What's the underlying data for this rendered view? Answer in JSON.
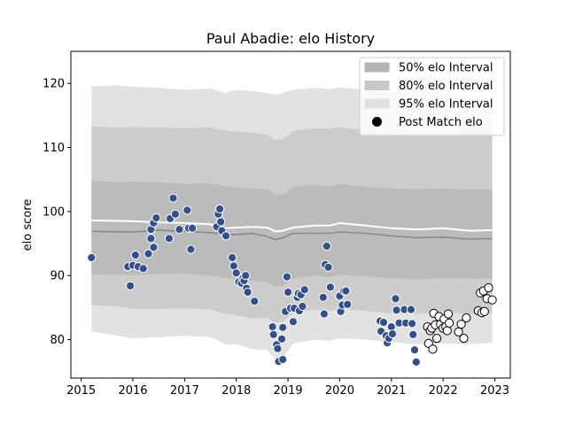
{
  "chart_data": {
    "type": "scatter",
    "title": "Paul Abadie: elo History",
    "xlabel": "",
    "ylabel": "elo score",
    "xlim": [
      2014.8,
      2023.3
    ],
    "ylim": [
      74,
      125
    ],
    "xticks": [
      2015,
      2016,
      2017,
      2018,
      2019,
      2020,
      2021,
      2022,
      2023
    ],
    "yticks": [
      80,
      90,
      100,
      110,
      120
    ],
    "grid": false,
    "legend_position": "top-right",
    "legend": [
      {
        "label": "50% elo Interval",
        "kind": "band",
        "color": "#b4b4b4"
      },
      {
        "label": "80% elo Interval",
        "kind": "band",
        "color": "#c8c8c8"
      },
      {
        "label": "95% elo Interval",
        "kind": "band",
        "color": "#e0e0e0"
      },
      {
        "label": "Post Match elo",
        "kind": "marker",
        "color": "#000000"
      }
    ],
    "colors": {
      "band95": "#e2e2e2",
      "band80": "#cccccc",
      "band50": "#bbbbbb",
      "median_line": "#888888",
      "mean_line": "#ffffff",
      "historic_points": "#34508a",
      "recent_points": "#ffffff"
    },
    "bands": {
      "x": [
        2015.2,
        2015.7,
        2016.0,
        2016.5,
        2017.0,
        2017.5,
        2017.8,
        2018.0,
        2018.3,
        2018.6,
        2018.75,
        2018.9,
        2019.1,
        2019.5,
        2019.8,
        2020.0,
        2020.5,
        2021.0,
        2021.5,
        2022.0,
        2022.5,
        2022.95
      ],
      "p95_upper": [
        119.5,
        119.7,
        119.5,
        119.3,
        119.0,
        119.2,
        118.5,
        119.0,
        118.8,
        118.5,
        118.2,
        118.5,
        119.0,
        119.3,
        119.1,
        119.4,
        119.0,
        118.7,
        118.5,
        118.5,
        118.0,
        117.7
      ],
      "p95_lower": [
        81.3,
        80.6,
        80.2,
        80.4,
        80.6,
        80.4,
        79.2,
        79.3,
        78.5,
        78.4,
        77.0,
        77.2,
        79.4,
        80.0,
        79.8,
        80.2,
        80.0,
        79.6,
        79.3,
        79.4,
        79.3,
        79.5
      ],
      "p80_upper": [
        113.3,
        113.1,
        113.2,
        113.1,
        113.0,
        113.1,
        112.6,
        112.5,
        112.3,
        112.0,
        111.2,
        111.3,
        112.6,
        113.0,
        112.9,
        113.2,
        112.6,
        112.2,
        112.3,
        112.3,
        112.5,
        112.5
      ],
      "p80_lower": [
        85.4,
        85.2,
        84.8,
        84.8,
        84.9,
        84.7,
        84.0,
        83.8,
        83.3,
        83.4,
        82.6,
        82.8,
        84.1,
        84.7,
        84.4,
        84.8,
        84.5,
        84.1,
        84.0,
        84.3,
        84.0,
        84.0
      ],
      "p50_upper": [
        104.8,
        104.6,
        104.7,
        104.5,
        104.3,
        104.4,
        103.9,
        103.8,
        103.6,
        103.5,
        102.7,
        102.6,
        103.8,
        104.2,
        103.9,
        104.3,
        103.9,
        103.6,
        103.5,
        103.6,
        103.4,
        103.4
      ],
      "p50_lower": [
        90.2,
        90.1,
        90.1,
        90.2,
        90.3,
        90.0,
        89.6,
        89.4,
        89.2,
        89.0,
        88.2,
        88.4,
        89.6,
        90.0,
        89.8,
        90.1,
        89.9,
        89.6,
        89.4,
        89.6,
        89.5,
        89.5
      ]
    },
    "median_line": {
      "x": [
        2015.2,
        2016.0,
        2016.5,
        2017.0,
        2017.5,
        2017.8,
        2018.0,
        2018.3,
        2018.6,
        2018.75,
        2018.9,
        2019.1,
        2019.5,
        2019.8,
        2020.0,
        2020.5,
        2021.0,
        2021.5,
        2022.0,
        2022.5,
        2022.95
      ],
      "y": [
        96.9,
        96.8,
        97.1,
        96.9,
        96.7,
        96.4,
        96.4,
        96.6,
        96.1,
        95.6,
        95.9,
        96.6,
        96.6,
        96.6,
        96.8,
        96.6,
        96.2,
        95.9,
        96.0,
        95.7,
        95.8
      ]
    },
    "mean_line": {
      "x": [
        2015.2,
        2016.0,
        2016.5,
        2017.0,
        2017.5,
        2017.8,
        2018.0,
        2018.3,
        2018.6,
        2018.75,
        2018.9,
        2019.1,
        2019.5,
        2019.8,
        2020.0,
        2020.5,
        2021.0,
        2021.5,
        2022.0,
        2022.5,
        2022.95
      ],
      "y": [
        98.6,
        98.5,
        98.3,
        98.2,
        98.0,
        97.4,
        97.5,
        97.6,
        97.5,
        96.9,
        97.0,
        97.5,
        97.8,
        97.8,
        98.2,
        97.8,
        97.4,
        97.2,
        97.4,
        97.0,
        97.1
      ]
    },
    "series": [
      {
        "name": "Post Match elo",
        "style": "historic",
        "points": [
          [
            2015.2,
            92.8
          ],
          [
            2015.9,
            91.4
          ],
          [
            2015.95,
            88.4
          ],
          [
            2016.0,
            91.6
          ],
          [
            2016.05,
            93.2
          ],
          [
            2016.1,
            91.4
          ],
          [
            2016.2,
            91.1
          ],
          [
            2016.3,
            93.4
          ],
          [
            2016.35,
            97.2
          ],
          [
            2016.35,
            95.8
          ],
          [
            2016.4,
            94.4
          ],
          [
            2016.4,
            98.2
          ],
          [
            2016.45,
            99.0
          ],
          [
            2016.7,
            95.8
          ],
          [
            2016.72,
            98.9
          ],
          [
            2016.78,
            102.1
          ],
          [
            2016.82,
            99.6
          ],
          [
            2016.9,
            97.2
          ],
          [
            2017.05,
            100.2
          ],
          [
            2017.08,
            97.4
          ],
          [
            2017.12,
            94.1
          ],
          [
            2017.15,
            97.4
          ],
          [
            2017.62,
            97.6
          ],
          [
            2017.65,
            99.6
          ],
          [
            2017.68,
            100.4
          ],
          [
            2017.7,
            98.4
          ],
          [
            2017.72,
            97.0
          ],
          [
            2017.8,
            96.2
          ],
          [
            2017.92,
            92.8
          ],
          [
            2017.95,
            91.5
          ],
          [
            2018.0,
            90.4
          ],
          [
            2018.05,
            89.0
          ],
          [
            2018.1,
            88.8
          ],
          [
            2018.13,
            89.6
          ],
          [
            2018.15,
            89.2
          ],
          [
            2018.18,
            90.0
          ],
          [
            2018.2,
            88.0
          ],
          [
            2018.22,
            87.4
          ],
          [
            2018.35,
            86.0
          ],
          [
            2018.7,
            82.0
          ],
          [
            2018.72,
            80.8
          ],
          [
            2018.78,
            79.2
          ],
          [
            2018.8,
            78.6
          ],
          [
            2018.82,
            76.6
          ],
          [
            2018.88,
            80.1
          ],
          [
            2018.9,
            76.9
          ],
          [
            2018.9,
            81.9
          ],
          [
            2018.95,
            84.4
          ],
          [
            2018.98,
            89.8
          ],
          [
            2019.0,
            87.4
          ],
          [
            2019.05,
            84.9
          ],
          [
            2019.1,
            82.8
          ],
          [
            2019.12,
            84.9
          ],
          [
            2019.18,
            86.6
          ],
          [
            2019.2,
            87.2
          ],
          [
            2019.22,
            84.5
          ],
          [
            2019.25,
            87.0
          ],
          [
            2019.28,
            85.2
          ],
          [
            2019.32,
            87.8
          ],
          [
            2019.68,
            86.6
          ],
          [
            2019.7,
            84.0
          ],
          [
            2019.72,
            91.7
          ],
          [
            2019.75,
            94.6
          ],
          [
            2019.78,
            91.3
          ],
          [
            2019.82,
            88.2
          ],
          [
            2020.0,
            86.8
          ],
          [
            2020.02,
            84.4
          ],
          [
            2020.05,
            85.4
          ],
          [
            2020.08,
            87.6
          ],
          [
            2020.12,
            87.6
          ],
          [
            2020.15,
            85.5
          ],
          [
            2020.78,
            82.9
          ],
          [
            2020.8,
            81.3
          ],
          [
            2020.85,
            82.7
          ],
          [
            2020.9,
            80.6
          ],
          [
            2020.92,
            79.5
          ],
          [
            2020.95,
            80.2
          ],
          [
            2021.0,
            82.0
          ],
          [
            2021.02,
            80.9
          ],
          [
            2021.08,
            86.4
          ],
          [
            2021.1,
            84.6
          ],
          [
            2021.15,
            82.6
          ],
          [
            2021.25,
            84.7
          ],
          [
            2021.28,
            82.6
          ],
          [
            2021.38,
            84.7
          ],
          [
            2021.4,
            82.5
          ],
          [
            2021.42,
            80.8
          ],
          [
            2021.45,
            78.4
          ],
          [
            2021.48,
            76.5
          ]
        ]
      },
      {
        "name": "Post Match elo",
        "style": "recent",
        "points": [
          [
            2021.7,
            82.0
          ],
          [
            2021.72,
            79.4
          ],
          [
            2021.75,
            81.4
          ],
          [
            2021.78,
            81.8
          ],
          [
            2021.8,
            78.5
          ],
          [
            2021.82,
            84.1
          ],
          [
            2021.85,
            82.3
          ],
          [
            2021.88,
            80.2
          ],
          [
            2021.92,
            83.6
          ],
          [
            2021.95,
            82.4
          ],
          [
            2022.0,
            81.8
          ],
          [
            2022.02,
            83.2
          ],
          [
            2022.05,
            82.0
          ],
          [
            2022.08,
            81.4
          ],
          [
            2022.1,
            84.0
          ],
          [
            2022.12,
            82.6
          ],
          [
            2022.3,
            81.2
          ],
          [
            2022.35,
            82.4
          ],
          [
            2022.4,
            80.2
          ],
          [
            2022.45,
            83.4
          ],
          [
            2022.68,
            84.5
          ],
          [
            2022.72,
            87.3
          ],
          [
            2022.75,
            84.2
          ],
          [
            2022.78,
            87.6
          ],
          [
            2022.8,
            84.4
          ],
          [
            2022.85,
            86.4
          ],
          [
            2022.88,
            88.1
          ],
          [
            2022.95,
            86.2
          ]
        ]
      }
    ]
  }
}
